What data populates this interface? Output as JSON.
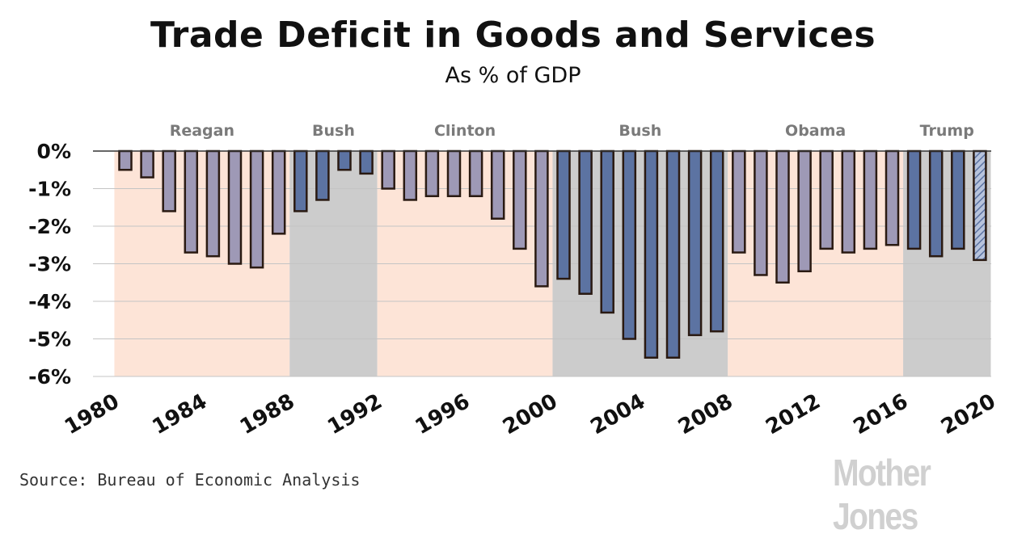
{
  "chart_data": {
    "type": "bar",
    "title": "Trade Deficit in Goods and Services",
    "subtitle": "As % of GDP",
    "x": [
      1981,
      1982,
      1983,
      1984,
      1985,
      1986,
      1987,
      1988,
      1989,
      1990,
      1991,
      1992,
      1993,
      1994,
      1995,
      1996,
      1997,
      1998,
      1999,
      2000,
      2001,
      2002,
      2003,
      2004,
      2005,
      2006,
      2007,
      2008,
      2009,
      2010,
      2011,
      2012,
      2013,
      2014,
      2015,
      2016,
      2017,
      2018,
      2019,
      2020
    ],
    "values": [
      -0.5,
      -0.7,
      -1.6,
      -2.7,
      -2.8,
      -3.0,
      -3.1,
      -2.2,
      -1.6,
      -1.3,
      -0.5,
      -0.6,
      -1.0,
      -1.3,
      -1.2,
      -1.2,
      -1.2,
      -1.8,
      -2.6,
      -3.6,
      -3.4,
      -3.8,
      -4.3,
      -5.0,
      -5.5,
      -5.5,
      -4.9,
      -4.8,
      -2.7,
      -3.3,
      -3.5,
      -3.2,
      -2.6,
      -2.7,
      -2.6,
      -2.5,
      -2.6,
      -2.8,
      -2.6,
      -2.9
    ],
    "ylim": [
      -6,
      0
    ],
    "y_ticks": [
      "0%",
      "-1%",
      "-2%",
      "-3%",
      "-4%",
      "-5%",
      "-6%"
    ],
    "y_tick_values": [
      0,
      -1,
      -2,
      -3,
      -4,
      -5,
      -6
    ],
    "x_ticks": [
      "1980",
      "1984",
      "1988",
      "1992",
      "1996",
      "2000",
      "2004",
      "2008",
      "2012",
      "2016",
      "2020"
    ],
    "x_tick_values": [
      1980,
      1984,
      1988,
      1992,
      1996,
      2000,
      2004,
      2008,
      2012,
      2016,
      2020
    ],
    "grid": true,
    "estimated_bars": [
      2020
    ],
    "administrations": [
      {
        "name": "Reagan",
        "start": 1981,
        "end": 1988,
        "party": "R"
      },
      {
        "name": "Bush",
        "start": 1989,
        "end": 1992,
        "party": "R"
      },
      {
        "name": "Clinton",
        "start": 1993,
        "end": 2000,
        "party": "D"
      },
      {
        "name": "Bush",
        "start": 2001,
        "end": 2008,
        "party": "R"
      },
      {
        "name": "Obama",
        "start": 2009,
        "end": 2016,
        "party": "D"
      },
      {
        "name": "Trump",
        "start": 2017,
        "end": 2020,
        "party": "R"
      }
    ],
    "colors": {
      "band_reagan_clinton_obama": "#fde4d7",
      "band_bush_trump": "#cccccc",
      "bar_light": "#9e99b6",
      "bar_dark": "#5c73a2",
      "bar_outline": "#2a1a12"
    }
  },
  "source": "Source: Bureau of Economic Analysis",
  "brand": "Mother Jones"
}
